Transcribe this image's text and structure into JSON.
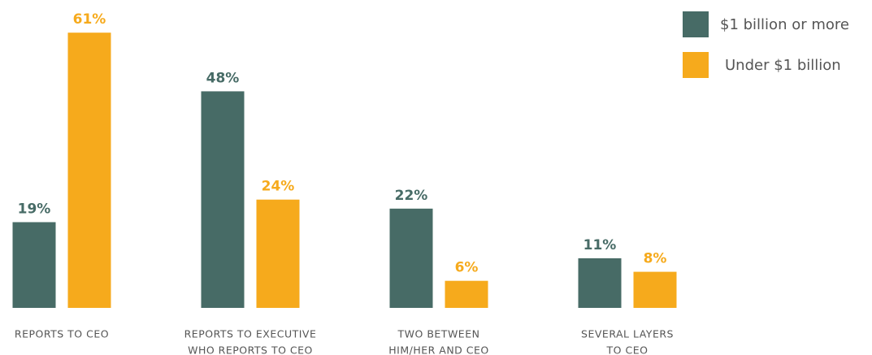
{
  "chart_data": {
    "type": "bar",
    "categories": [
      [
        "REPORTS TO CEO"
      ],
      [
        "REPORTS TO EXECUTIVE",
        "WHO REPORTS TO CEO"
      ],
      [
        "TWO BETWEEN",
        "HIM/HER AND CEO"
      ],
      [
        "SEVERAL LAYERS",
        "TO CEO"
      ]
    ],
    "series": [
      {
        "name": "$1 billion or more",
        "color": "#476b66",
        "values": [
          19,
          48,
          22,
          11
        ],
        "value_labels": [
          "19%",
          "48%",
          "22%",
          "11%"
        ]
      },
      {
        "name": "Under $1 billion",
        "color": "#f6aa1c",
        "values": [
          61,
          24,
          6,
          8
        ],
        "value_labels": [
          "61%",
          "24%",
          "6%",
          "8%"
        ]
      }
    ],
    "ylim": [
      0,
      65
    ],
    "legend": "top-right"
  }
}
